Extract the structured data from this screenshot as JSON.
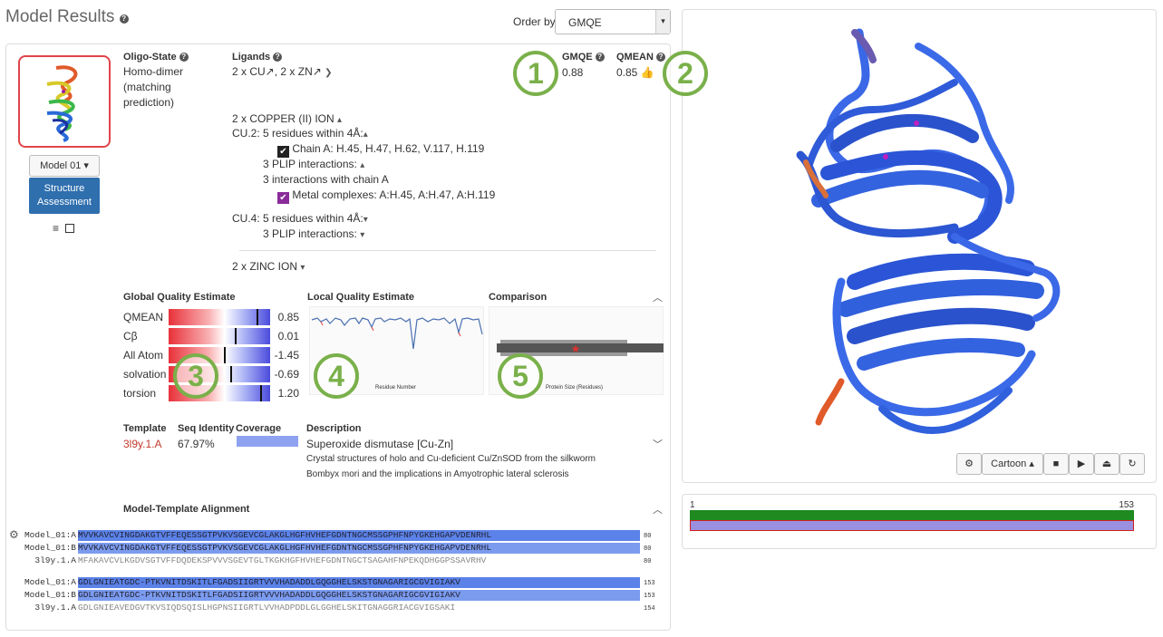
{
  "header": {
    "title": "Model Results",
    "order_by_label": "Order by:",
    "order_by_value": "GMQE"
  },
  "model": {
    "selector_label": "Model 01 ▾",
    "assessment_button": "Structure Assessment",
    "oligo_state_label": "Oligo-State",
    "oligo_state_value": "Homo-dimer (matching prediction)",
    "ligands_label": "Ligands",
    "ligands_value": "2 x CU↗, 2 x ZN↗",
    "gmqe_label": "GMQE",
    "gmqe_value": "0.88",
    "qmean_label": "QMEAN",
    "qmean_value": "0.85"
  },
  "ligand_details": {
    "copper_header": "2 x COPPER (II) ION",
    "cu2_line": "CU.2:  5 residues within 4Å:",
    "cu2_chain": "Chain A: H.45, H.47, H.62, V.117, H.119",
    "cu2_plip": "3 PLIP interactions:",
    "cu2_interactions_chain": "3 interactions with chain A",
    "cu2_metal": "Metal complexes: A:H.45, A:H.47, A:H.119",
    "cu4_line": "CU.4:  5 residues within 4Å:",
    "cu4_plip": "3 PLIP interactions:",
    "zinc_header": "2 x ZINC ION"
  },
  "quality": {
    "global_title": "Global Quality Estimate",
    "local_title": "Local Quality Estimate",
    "comparison_title": "Comparison",
    "local_xlabel": "Residue Number",
    "comparison_xlabel": "Protein Size (Residues)",
    "rows": [
      {
        "label": "QMEAN",
        "value": "0.85",
        "marker": 0.88
      },
      {
        "label": "Cβ",
        "value": "0.01",
        "marker": 0.66
      },
      {
        "label": "All Atom",
        "value": "-1.45",
        "marker": 0.55
      },
      {
        "label": "solvation",
        "value": "-0.69",
        "marker": 0.62
      },
      {
        "label": "torsion",
        "value": "1.20",
        "marker": 0.92
      }
    ]
  },
  "template": {
    "template_label": "Template",
    "seqid_label": "Seq Identity",
    "coverage_label": "Coverage",
    "description_label": "Description",
    "template_id": "3l9y.1.A",
    "seq_identity": "67.97%",
    "coverage": 1.0,
    "description": "Superoxide dismutase [Cu-Zn]",
    "citation_line1": "Crystal structures of holo and Cu-deficient Cu/ZnSOD from the silkworm",
    "citation_line2": "Bombyx mori and the implications in Amyotrophic lateral sclerosis"
  },
  "alignment": {
    "title": "Model-Template Alignment",
    "block1": [
      {
        "label": "Model_01:A",
        "seq": "MVVKAVCVINGDAKGTVFFEQESSGTPVKVSGEVCGLAKGLHGFHVHEFGDNTNGCMSSGPHFNPYGKEHGAPVDENRHL",
        "end": "80"
      },
      {
        "label": "Model_01:B",
        "seq": "MVVKAVCVINGDAKGTVFFEQESSGTPVKVSGEVCGLAKGLHGFHVHEFGDNTNGCMSSGPHFNPYGKEHGAPVDENRHL",
        "end": "80"
      },
      {
        "label": "3l9y.1.A",
        "seq": "MFAKAVCVLKGDVSGTVFFDQDEKSPVVVSGEVTGLTKGKHGFHVHEFGDNTNGCTSAGAHFNPEKQDHGGPSSAVRHV",
        "end": "80"
      }
    ],
    "block2": [
      {
        "label": "Model_01:A",
        "seq": "GDLGNIEATGDC-PTKVNITDSKITLFGADSIIGRTVVVHADADDLGQGGHELSKSTGNAGARIGCGVIGIAKV",
        "end": "153"
      },
      {
        "label": "Model_01:B",
        "seq": "GDLGNIEATGDC-PTKVNITDSKITLFGADSIIGRTVVVHADADDLGQGGHELSKSTGNAGARIGCGVIGIAKV",
        "end": "153"
      },
      {
        "label": "3l9y.1.A",
        "seq": "GDLGNIEAVEDGVTKVSIQDSQISLHGPNSIIGRTLVVHADPDDLGLGGHELSKITGNAGGRIACGVIGSAKI",
        "end": "154"
      }
    ]
  },
  "viewer": {
    "style_button": "Cartoon ▴",
    "coverage_start": "1",
    "coverage_end": "153"
  },
  "callouts": [
    "1",
    "2",
    "3",
    "4",
    "5"
  ],
  "colors": {
    "accent_green": "#7ab04a",
    "button_blue": "#2f6fae",
    "template_red": "#c0392b",
    "helix_blue": "#2b55d6"
  }
}
